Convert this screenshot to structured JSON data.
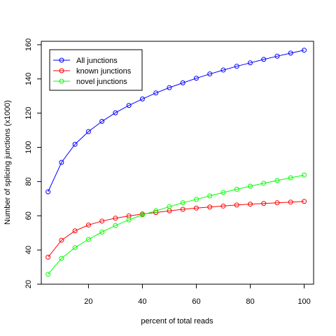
{
  "chart_data": {
    "type": "line",
    "xlabel": "percent of total reads",
    "ylabel": "Number of splicing junctions (x1000)",
    "xlim": [
      2.5,
      103.5
    ],
    "ylim": [
      20,
      162
    ],
    "xticks": [
      20,
      40,
      60,
      80,
      100
    ],
    "yticks": [
      20,
      40,
      60,
      80,
      100,
      120,
      140,
      160
    ],
    "grid": false,
    "legend_position": "top-left",
    "x": [
      5,
      10,
      15,
      20,
      25,
      30,
      35,
      40,
      45,
      50,
      55,
      60,
      65,
      70,
      75,
      80,
      85,
      90,
      95,
      100
    ],
    "series": [
      {
        "name": "All junctions",
        "color": "#0000ff",
        "values": [
          74,
          91.2,
          101.8,
          109.2,
          115.2,
          120.2,
          124.5,
          128.3,
          131.8,
          134.9,
          137.7,
          140.4,
          142.9,
          145.2,
          147.4,
          149.4,
          151.4,
          153.3,
          155.1,
          156.8
        ]
      },
      {
        "name": "known junctions",
        "color": "#ff0000",
        "values": [
          35.8,
          45.7,
          51.2,
          54.6,
          56.9,
          58.6,
          59.9,
          61,
          61.9,
          62.9,
          63.8,
          64.5,
          65.1,
          65.7,
          66.3,
          66.8,
          67.2,
          67.6,
          68,
          68.4
        ]
      },
      {
        "name": "novel junctions",
        "color": "#00ff00",
        "values": [
          25.8,
          35.1,
          41.4,
          46.2,
          50.5,
          54.3,
          57.6,
          60.5,
          62.9,
          65.3,
          67.6,
          69.6,
          71.6,
          73.6,
          75.5,
          77.3,
          79,
          80.6,
          82.2,
          83.8
        ]
      }
    ]
  }
}
